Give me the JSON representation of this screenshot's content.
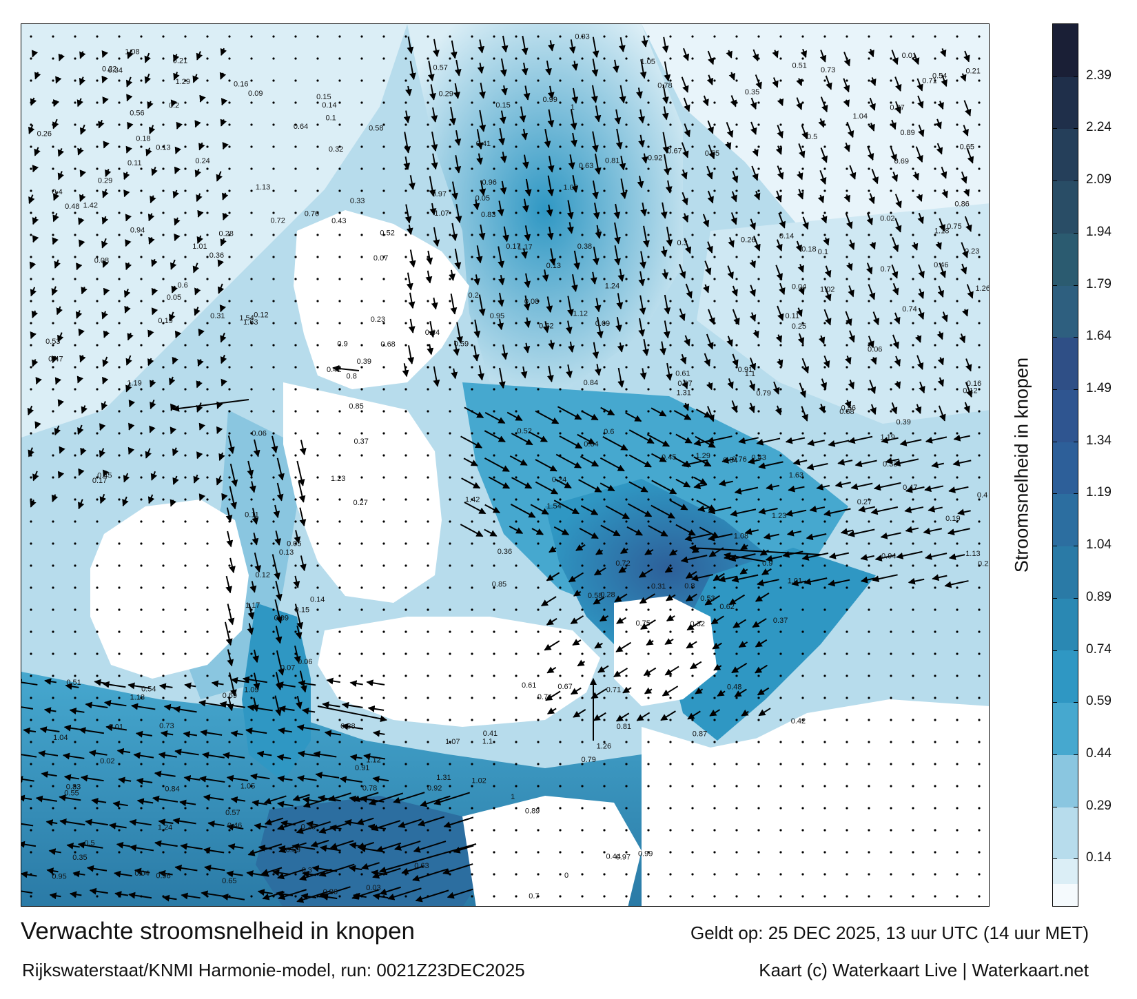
{
  "title": "Verwachte stroomsnelheid in knopen",
  "subtitle": "Rijkswaterstaat/KNMI Harmonie-model, run: 0021Z23DEC2025",
  "valid_time": "Geldt op: 25 DEC 2025, 13 uur UTC (14 uur MET)",
  "credit": "Kaart (c) Waterkaart Live | Waterkaart.net",
  "colorbar": {
    "title": "Stroomsnelheid in knopen",
    "min": 0,
    "max": 2.54,
    "tick_values": [
      0.14,
      0.29,
      0.44,
      0.59,
      0.74,
      0.89,
      1.04,
      1.19,
      1.34,
      1.49,
      1.64,
      1.79,
      1.94,
      2.09,
      2.24,
      2.39
    ],
    "tick_labels": [
      "0.14",
      "0.29",
      "0.44",
      "0.59",
      "0.74",
      "0.89",
      "1.04",
      "1.19",
      "1.34",
      "1.49",
      "1.64",
      "1.79",
      "1.94",
      "2.09",
      "2.24",
      "2.39"
    ],
    "band_colors": [
      "#f5fafd",
      "#dbeef6",
      "#b7dcec",
      "#8ac6e0",
      "#46a8cf",
      "#2f97c3",
      "#2a88b3",
      "#2a7aa6",
      "#2c6ea0",
      "#2d5f99",
      "#2f5590",
      "#2f4f86",
      "#2e5f7f",
      "#2b5b70",
      "#294d66",
      "#253f5a",
      "#1f2f4a",
      "#1a1f36"
    ],
    "band_bounds": [
      0,
      0.07,
      0.14,
      0.29,
      0.44,
      0.59,
      0.74,
      0.89,
      1.04,
      1.19,
      1.34,
      1.49,
      1.64,
      1.79,
      1.94,
      2.09,
      2.24,
      2.39,
      2.54
    ]
  },
  "map_labels": [
    {
      "text": "0.12"
    },
    {
      "text": "0.14"
    },
    {
      "text": "0.11"
    },
    {
      "text": "0.06"
    },
    {
      "text": "0.13"
    },
    {
      "text": "0.15"
    },
    {
      "text": "0.09"
    },
    {
      "text": "0.07"
    },
    {
      "text": "0.05"
    },
    {
      "text": "0.08"
    },
    {
      "text": "0.1"
    },
    {
      "text": "0.17"
    },
    {
      "text": "0.16"
    },
    {
      "text": "0.18"
    },
    {
      "text": "0.2"
    },
    {
      "text": "0.21"
    },
    {
      "text": "0.23"
    },
    {
      "text": "0.26"
    },
    {
      "text": "0.29"
    },
    {
      "text": "0.31"
    },
    {
      "text": "0.33"
    },
    {
      "text": "0.36"
    },
    {
      "text": "0.4"
    },
    {
      "text": "0.43"
    },
    {
      "text": "0.47"
    },
    {
      "text": "0.52"
    },
    {
      "text": "0.56"
    },
    {
      "text": "0.6"
    },
    {
      "text": "0.64"
    },
    {
      "text": "0.68"
    },
    {
      "text": "0.72"
    },
    {
      "text": "0.76"
    },
    {
      "text": "0.8"
    },
    {
      "text": "0.85"
    },
    {
      "text": "0.9"
    },
    {
      "text": "0.94"
    },
    {
      "text": "1.01"
    },
    {
      "text": "1.08"
    },
    {
      "text": "1.13"
    },
    {
      "text": "1.19"
    },
    {
      "text": "1.23"
    },
    {
      "text": "1.29"
    },
    {
      "text": "1.42"
    },
    {
      "text": "1.54"
    },
    {
      "text": "1.63"
    },
    {
      "text": "0.45"
    },
    {
      "text": "0.39"
    },
    {
      "text": "0.34"
    },
    {
      "text": "0.27"
    },
    {
      "text": "0.22"
    },
    {
      "text": "0.19"
    },
    {
      "text": "0.24"
    },
    {
      "text": "0.28"
    },
    {
      "text": "0.32"
    },
    {
      "text": "0.37"
    },
    {
      "text": "0.42"
    },
    {
      "text": "0.48"
    },
    {
      "text": "0.53"
    },
    {
      "text": "0.58"
    },
    {
      "text": "0.62"
    },
    {
      "text": "0.67"
    },
    {
      "text": "0.71"
    },
    {
      "text": "0.75"
    },
    {
      "text": "0.81"
    },
    {
      "text": "0.87"
    },
    {
      "text": "0.92"
    },
    {
      "text": "0.97"
    },
    {
      "text": "1.05"
    },
    {
      "text": "1.1"
    },
    {
      "text": "1.18"
    },
    {
      "text": "1.26"
    },
    {
      "text": "1.31"
    },
    {
      "text": "0.02"
    },
    {
      "text": "0.03"
    },
    {
      "text": "0.04"
    },
    {
      "text": "0.01"
    },
    {
      "text": "0"
    },
    {
      "text": "0.25"
    },
    {
      "text": "0.3"
    },
    {
      "text": "0.35"
    },
    {
      "text": "0.41"
    },
    {
      "text": "0.46"
    },
    {
      "text": "0.51"
    },
    {
      "text": "0.55"
    },
    {
      "text": "0.59"
    },
    {
      "text": "0.63"
    },
    {
      "text": "0.69"
    },
    {
      "text": "0.74"
    },
    {
      "text": "0.79"
    },
    {
      "text": "0.84"
    },
    {
      "text": "0.89"
    },
    {
      "text": "0.95"
    },
    {
      "text": "0.99"
    },
    {
      "text": "1.02"
    },
    {
      "text": "1.07"
    },
    {
      "text": "1.12"
    },
    {
      "text": "1.24"
    },
    {
      "text": "0.38"
    },
    {
      "text": "0.44"
    },
    {
      "text": "0.5"
    },
    {
      "text": "0.54"
    },
    {
      "text": "0.57"
    },
    {
      "text": "0.61"
    },
    {
      "text": "0.65"
    },
    {
      "text": "0.7"
    },
    {
      "text": "0.73"
    },
    {
      "text": "0.78"
    },
    {
      "text": "0.83"
    },
    {
      "text": "0.86"
    },
    {
      "text": "0.91"
    },
    {
      "text": "0.96"
    },
    {
      "text": "1"
    },
    {
      "text": "1.04"
    },
    {
      "text": "1.09"
    },
    {
      "text": "1.17"
    }
  ],
  "legend_value_note": ""
}
